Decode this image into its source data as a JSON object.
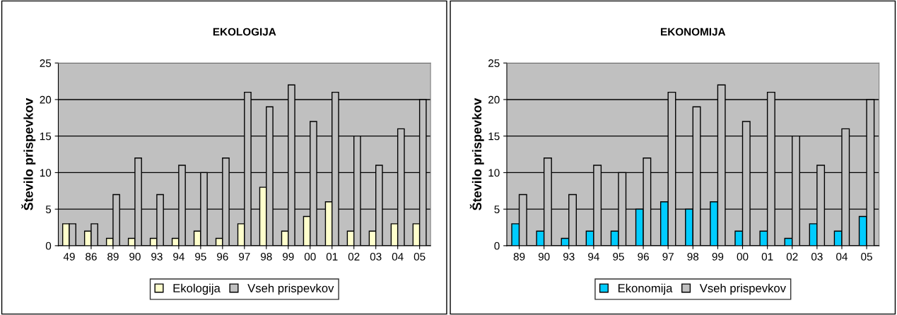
{
  "chart_data": [
    {
      "type": "bar",
      "title": "EKOLOGIJA",
      "ylabel": "Število prispevkov",
      "categories": [
        "49",
        "86",
        "89",
        "90",
        "93",
        "94",
        "95",
        "96",
        "97",
        "98",
        "99",
        "00",
        "01",
        "02",
        "03",
        "04",
        "05"
      ],
      "series": [
        {
          "name": "Ekologija",
          "color": "#ffffcc",
          "values": [
            3,
            2,
            1,
            1,
            1,
            1,
            2,
            1,
            3,
            8,
            2,
            4,
            6,
            2,
            2,
            3,
            3
          ]
        },
        {
          "name": "Vseh prispevkov",
          "color": "#c0c0c0",
          "values": [
            3,
            3,
            7,
            12,
            7,
            11,
            10,
            12,
            21,
            19,
            22,
            17,
            21,
            15,
            11,
            16,
            20
          ]
        }
      ],
      "ylim": [
        0,
        25
      ],
      "yticks": [
        0,
        5,
        10,
        15,
        20,
        25
      ],
      "grid": "y",
      "legend": "bottom"
    },
    {
      "type": "bar",
      "title": "EKONOMIJA",
      "ylabel": "Število prispevkov",
      "categories": [
        "89",
        "90",
        "93",
        "94",
        "95",
        "96",
        "97",
        "98",
        "99",
        "00",
        "01",
        "02",
        "03",
        "04",
        "05"
      ],
      "series": [
        {
          "name": "Ekonomija",
          "color": "#00ccff",
          "values": [
            3,
            2,
            1,
            2,
            2,
            5,
            6,
            5,
            6,
            2,
            2,
            1,
            3,
            2,
            4
          ]
        },
        {
          "name": "Vseh prispevkov",
          "color": "#c0c0c0",
          "values": [
            7,
            12,
            7,
            11,
            10,
            12,
            21,
            19,
            22,
            17,
            21,
            15,
            11,
            16,
            20
          ]
        }
      ],
      "ylim": [
        0,
        25
      ],
      "yticks": [
        0,
        5,
        10,
        15,
        20,
        25
      ],
      "grid": "y",
      "legend": "bottom"
    }
  ]
}
